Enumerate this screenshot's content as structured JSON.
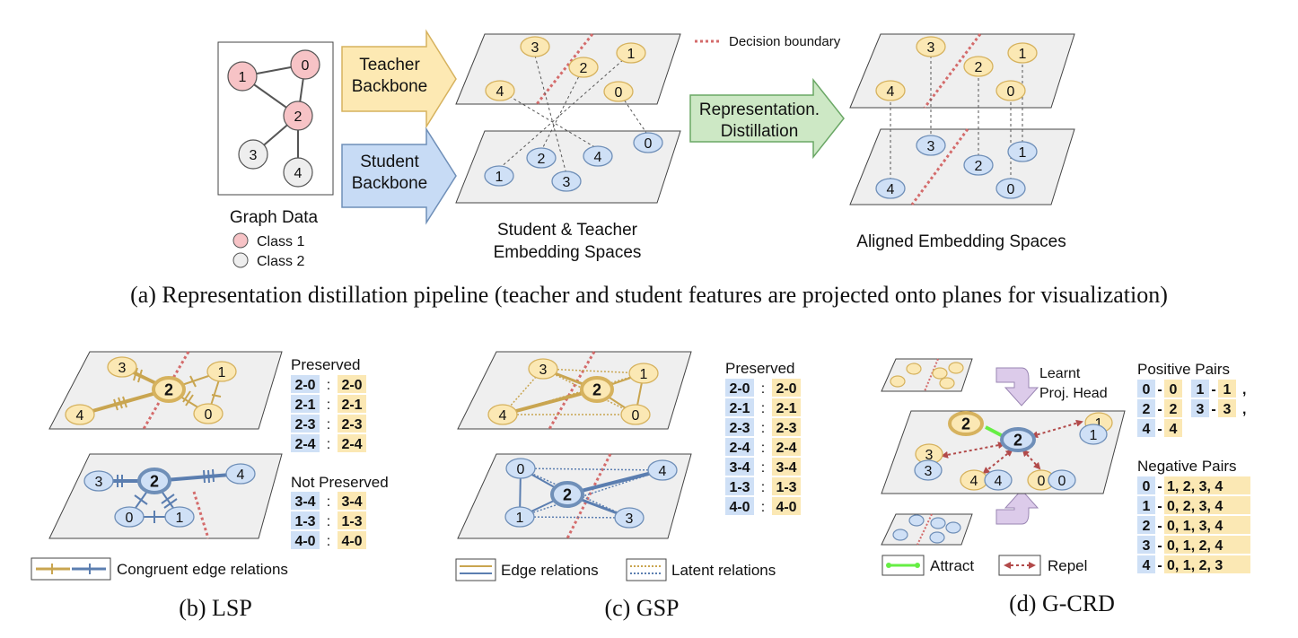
{
  "panel_a": {
    "graph_title": "Graph Data",
    "legend": [
      "Class 1",
      "Class 2"
    ],
    "nodes": [
      "1",
      "0",
      "2",
      "3",
      "4"
    ],
    "teacher_arrow": [
      "Teacher",
      "Backbone"
    ],
    "student_arrow": [
      "Student",
      "Backbone"
    ],
    "decision_boundary": "Decision boundary",
    "teacher_nodes": [
      "3",
      "2",
      "1",
      "4",
      "0"
    ],
    "student_nodes": [
      "2",
      "4",
      "0",
      "1",
      "3"
    ],
    "spaces_label": [
      "Student & Teacher",
      "Embedding Spaces"
    ],
    "distill_arrow": [
      "Representation.",
      "Distillation"
    ],
    "aligned_teacher_nodes": [
      "3",
      "2",
      "1",
      "4",
      "0"
    ],
    "aligned_student_nodes": [
      "3",
      "2",
      "1",
      "4",
      "0"
    ],
    "aligned_label": "Aligned Embedding Spaces",
    "caption": "(a) Representation distillation pipeline (teacher and student features are projected onto planes for visualization)"
  },
  "panel_b": {
    "teacher_nodes": [
      "3",
      "2",
      "1",
      "4",
      "0"
    ],
    "student_nodes": [
      "3",
      "2",
      "4",
      "0",
      "1"
    ],
    "preserved_title": "Preserved",
    "preserved": [
      [
        "2-0",
        "2-0"
      ],
      [
        "2-1",
        "2-1"
      ],
      [
        "2-3",
        "2-3"
      ],
      [
        "2-4",
        "2-4"
      ]
    ],
    "not_preserved_title": "Not Preserved",
    "not_preserved": [
      [
        "3-4",
        "3-4"
      ],
      [
        "1-3",
        "1-3"
      ],
      [
        "4-0",
        "4-0"
      ]
    ],
    "separator": ":",
    "legend": "Congruent edge relations",
    "caption": "(b) LSP"
  },
  "panel_c": {
    "teacher_nodes": [
      "3",
      "2",
      "1",
      "4",
      "0"
    ],
    "student_nodes": [
      "0",
      "4",
      "2",
      "1",
      "3"
    ],
    "preserved_title": "Preserved",
    "preserved": [
      [
        "2-0",
        "2-0"
      ],
      [
        "2-1",
        "2-1"
      ],
      [
        "2-3",
        "2-3"
      ],
      [
        "2-4",
        "2-4"
      ],
      [
        "3-4",
        "3-4"
      ],
      [
        "1-3",
        "1-3"
      ],
      [
        "4-0",
        "4-0"
      ]
    ],
    "separator": ":",
    "legend_edge": "Edge relations",
    "legend_latent": "Latent relations",
    "caption": "(c) GSP"
  },
  "panel_d": {
    "head_label": [
      "Learnt",
      "Proj. Head"
    ],
    "nodes": [
      "2",
      "2",
      "1",
      "1",
      "3",
      "3",
      "4",
      "4",
      "0",
      "0"
    ],
    "positive_title": "Positive Pairs",
    "positive_lines": [
      [
        [
          "0",
          "0"
        ],
        [
          "1",
          "1"
        ],
        ","
      ],
      [
        [
          "2",
          "2"
        ],
        [
          "3",
          "3"
        ],
        ","
      ],
      [
        [
          "4",
          "4"
        ]
      ]
    ],
    "negative_title": "Negative Pairs",
    "negative_lines": [
      [
        "0",
        "1, 2, 3, 4"
      ],
      [
        "1",
        "0, 2, 3, 4"
      ],
      [
        "2",
        "0, 1, 3, 4"
      ],
      [
        "3",
        "0, 1, 2, 4"
      ],
      [
        "4",
        "0, 1, 2, 3"
      ]
    ],
    "legend_attract": "Attract",
    "legend_repel": "Repel",
    "caption": "(d) G-CRD"
  },
  "colors": {
    "teacher_fill": "#fbe8b4",
    "teacher_stroke": "#d6b25e",
    "student_fill": "#cfe0f6",
    "student_stroke": "#6f8fb8",
    "class1_fill": "#f7c3c6",
    "class1_stroke": "#c98f92",
    "class2_fill": "#eeeeee",
    "plane_fill": "#efefef",
    "boundary": "#d46b6b",
    "teacher_edge": "#c9a550",
    "student_edge": "#5b7eb0",
    "teacher_arrow": "#fde9b3",
    "student_arrow": "#c7dbf5",
    "distill_arrow": "#cde8c5",
    "attract": "#66ee44",
    "repel": "#b24a4a",
    "head_arrow": "#dccbea"
  }
}
